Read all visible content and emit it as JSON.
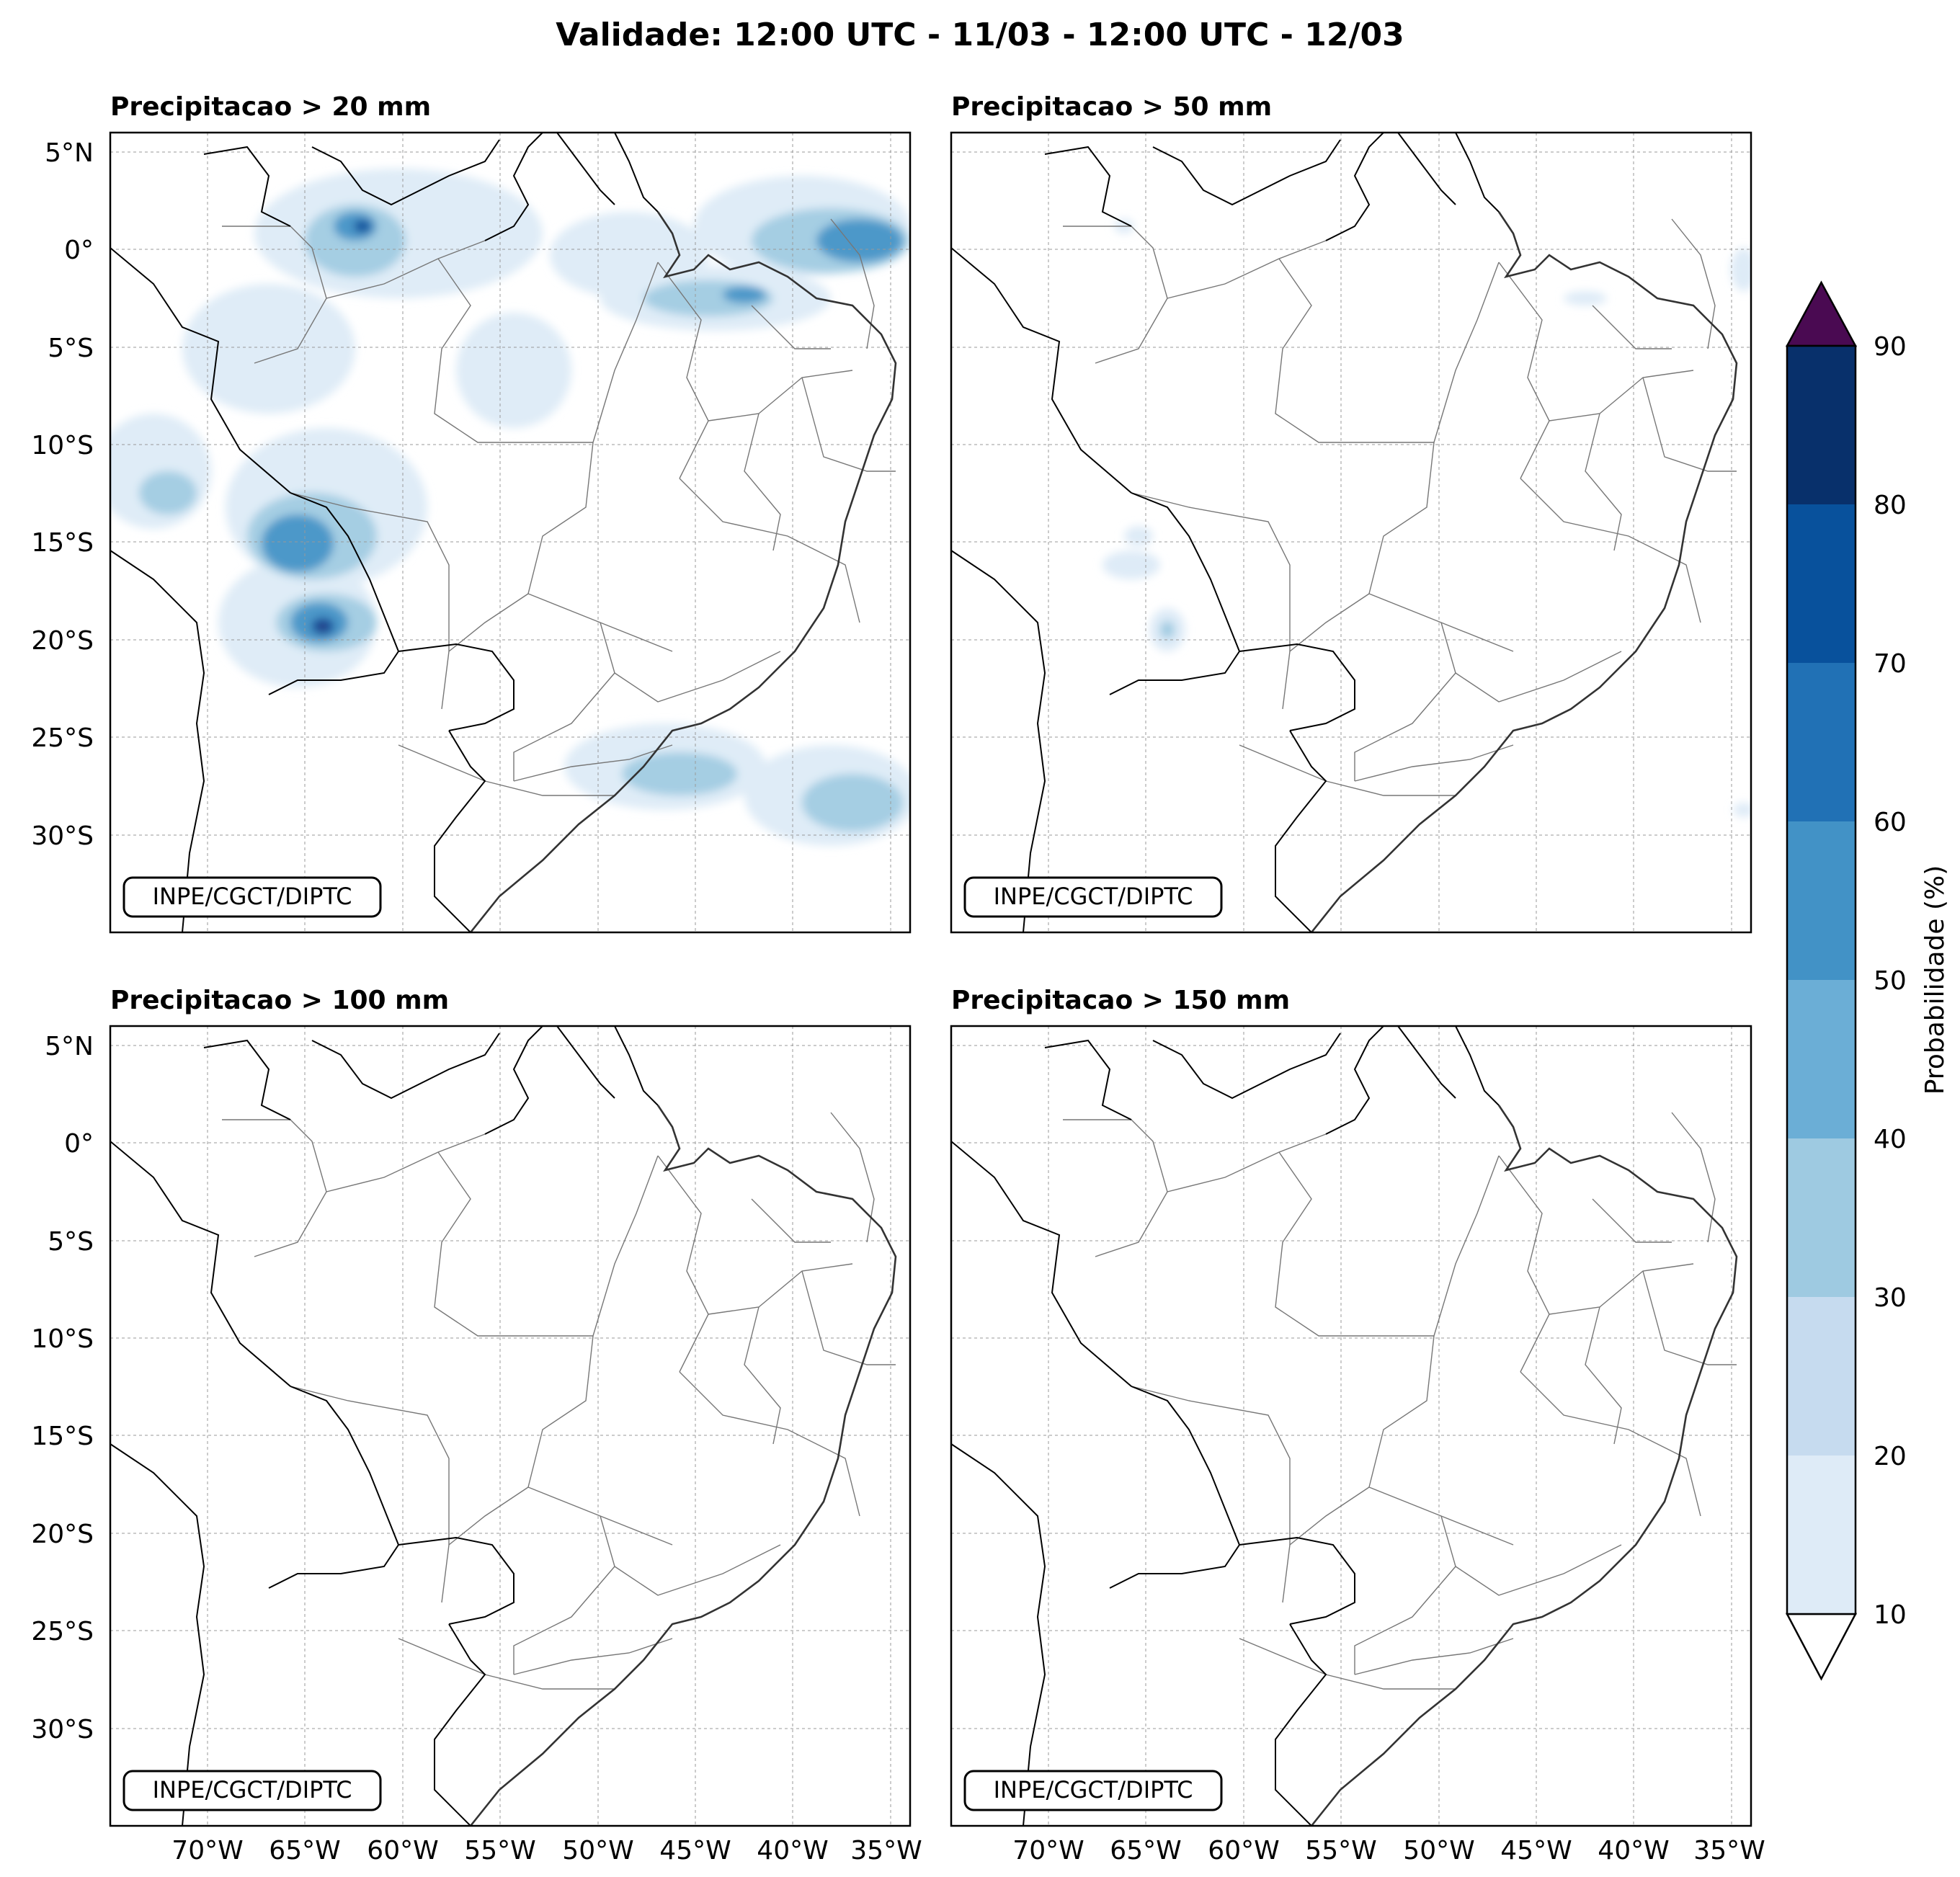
{
  "figure": {
    "title": "Validade: 12:00 UTC - 11/03 - 12:00 UTC - 12/03"
  },
  "map_axes": {
    "lon_ticks": [
      "70°W",
      "65°W",
      "60°W",
      "55°W",
      "50°W",
      "45°W",
      "40°W",
      "35°W"
    ],
    "lat_ticks": [
      "5°N",
      "0°",
      "5°S",
      "10°S",
      "15°S",
      "20°S",
      "25°S",
      "30°S"
    ],
    "lon_range_deg": [
      -75,
      -34
    ],
    "lat_range_deg": [
      -35,
      6
    ]
  },
  "panels": [
    {
      "title": "Precipitacao > 20 mm",
      "credit": "INPE/CGCT/DIPTC"
    },
    {
      "title": "Precipitacao > 50 mm",
      "credit": "INPE/CGCT/DIPTC"
    },
    {
      "title": "Precipitacao > 100 mm",
      "credit": "INPE/CGCT/DIPTC"
    },
    {
      "title": "Precipitacao > 150 mm",
      "credit": "INPE/CGCT/DIPTC"
    }
  ],
  "colorbar": {
    "label": "Probabilidade (%)",
    "ticks": [
      "10",
      "20",
      "30",
      "40",
      "50",
      "60",
      "70",
      "80",
      "90"
    ],
    "colors": [
      "#deebf7",
      "#c6dbef",
      "#9ecae1",
      "#6baed6",
      "#4292c6",
      "#2171b5",
      "#08519c",
      "#08306b"
    ],
    "over_color": "#4a0a52"
  }
}
